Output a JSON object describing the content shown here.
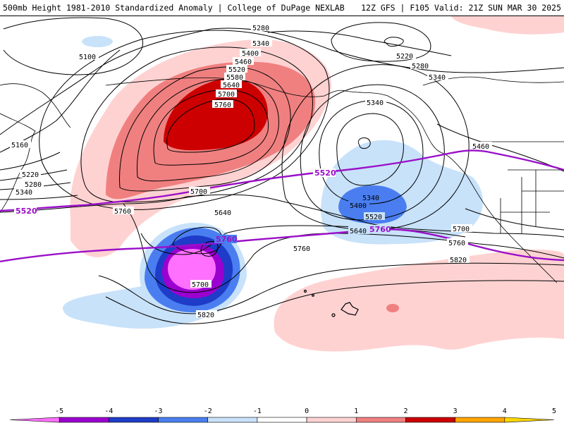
{
  "header": {
    "title_left": "500mb Height 1981-2010 Standardized Anomaly | College of DuPage NEXLAB",
    "title_right": "12Z GFS | F105 Valid: 21Z SUN MAR 30 2025"
  },
  "contour_labels": [
    "5280",
    "5340",
    "5400",
    "5460",
    "5520",
    "5580",
    "5640",
    "5700",
    "5760",
    "5100",
    "5160",
    "5220",
    "5280",
    "5340",
    "5520",
    "5760",
    "5700",
    "5640",
    "5760",
    "5700",
    "5820",
    "5220",
    "5280",
    "5340",
    "5340",
    "5340",
    "5400",
    "5520",
    "5640",
    "5700",
    "5760",
    "5820",
    "5460",
    "5760"
  ],
  "highlight_labels": [
    "5520",
    "5520",
    "5760",
    "5760"
  ],
  "colorbar": {
    "ticks": [
      "-5",
      "-4",
      "-3",
      "-2",
      "-1",
      "0",
      "1",
      "2",
      "3",
      "4",
      "5"
    ],
    "colors": [
      "#ff70ff",
      "#9b00d0",
      "#1e3cc8",
      "#4a7ef0",
      "#c8e2fa",
      "#ffffff",
      "#ffd2d2",
      "#f08080",
      "#cc0000",
      "#ffa500",
      "#ffd700"
    ]
  }
}
